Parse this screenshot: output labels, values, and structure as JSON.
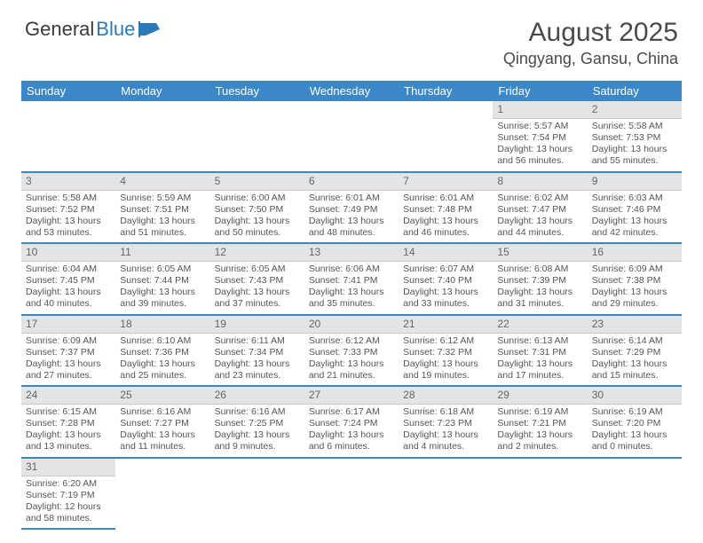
{
  "logo": {
    "text1": "General",
    "text2": "Blue"
  },
  "title": {
    "month": "August 2025",
    "location": "Qingyang, Gansu, China"
  },
  "colors": {
    "header_bg": "#3b87c8",
    "header_fg": "#ffffff",
    "daynum_bg": "#e4e4e4",
    "week_border": "#3b87c8",
    "text": "#555555"
  },
  "day_names": [
    "Sunday",
    "Monday",
    "Tuesday",
    "Wednesday",
    "Thursday",
    "Friday",
    "Saturday"
  ],
  "weeks": [
    [
      null,
      null,
      null,
      null,
      null,
      {
        "n": "1",
        "sr": "Sunrise: 5:57 AM",
        "ss": "Sunset: 7:54 PM",
        "d1": "Daylight: 13 hours",
        "d2": "and 56 minutes."
      },
      {
        "n": "2",
        "sr": "Sunrise: 5:58 AM",
        "ss": "Sunset: 7:53 PM",
        "d1": "Daylight: 13 hours",
        "d2": "and 55 minutes."
      }
    ],
    [
      {
        "n": "3",
        "sr": "Sunrise: 5:58 AM",
        "ss": "Sunset: 7:52 PM",
        "d1": "Daylight: 13 hours",
        "d2": "and 53 minutes."
      },
      {
        "n": "4",
        "sr": "Sunrise: 5:59 AM",
        "ss": "Sunset: 7:51 PM",
        "d1": "Daylight: 13 hours",
        "d2": "and 51 minutes."
      },
      {
        "n": "5",
        "sr": "Sunrise: 6:00 AM",
        "ss": "Sunset: 7:50 PM",
        "d1": "Daylight: 13 hours",
        "d2": "and 50 minutes."
      },
      {
        "n": "6",
        "sr": "Sunrise: 6:01 AM",
        "ss": "Sunset: 7:49 PM",
        "d1": "Daylight: 13 hours",
        "d2": "and 48 minutes."
      },
      {
        "n": "7",
        "sr": "Sunrise: 6:01 AM",
        "ss": "Sunset: 7:48 PM",
        "d1": "Daylight: 13 hours",
        "d2": "and 46 minutes."
      },
      {
        "n": "8",
        "sr": "Sunrise: 6:02 AM",
        "ss": "Sunset: 7:47 PM",
        "d1": "Daylight: 13 hours",
        "d2": "and 44 minutes."
      },
      {
        "n": "9",
        "sr": "Sunrise: 6:03 AM",
        "ss": "Sunset: 7:46 PM",
        "d1": "Daylight: 13 hours",
        "d2": "and 42 minutes."
      }
    ],
    [
      {
        "n": "10",
        "sr": "Sunrise: 6:04 AM",
        "ss": "Sunset: 7:45 PM",
        "d1": "Daylight: 13 hours",
        "d2": "and 40 minutes."
      },
      {
        "n": "11",
        "sr": "Sunrise: 6:05 AM",
        "ss": "Sunset: 7:44 PM",
        "d1": "Daylight: 13 hours",
        "d2": "and 39 minutes."
      },
      {
        "n": "12",
        "sr": "Sunrise: 6:05 AM",
        "ss": "Sunset: 7:43 PM",
        "d1": "Daylight: 13 hours",
        "d2": "and 37 minutes."
      },
      {
        "n": "13",
        "sr": "Sunrise: 6:06 AM",
        "ss": "Sunset: 7:41 PM",
        "d1": "Daylight: 13 hours",
        "d2": "and 35 minutes."
      },
      {
        "n": "14",
        "sr": "Sunrise: 6:07 AM",
        "ss": "Sunset: 7:40 PM",
        "d1": "Daylight: 13 hours",
        "d2": "and 33 minutes."
      },
      {
        "n": "15",
        "sr": "Sunrise: 6:08 AM",
        "ss": "Sunset: 7:39 PM",
        "d1": "Daylight: 13 hours",
        "d2": "and 31 minutes."
      },
      {
        "n": "16",
        "sr": "Sunrise: 6:09 AM",
        "ss": "Sunset: 7:38 PM",
        "d1": "Daylight: 13 hours",
        "d2": "and 29 minutes."
      }
    ],
    [
      {
        "n": "17",
        "sr": "Sunrise: 6:09 AM",
        "ss": "Sunset: 7:37 PM",
        "d1": "Daylight: 13 hours",
        "d2": "and 27 minutes."
      },
      {
        "n": "18",
        "sr": "Sunrise: 6:10 AM",
        "ss": "Sunset: 7:36 PM",
        "d1": "Daylight: 13 hours",
        "d2": "and 25 minutes."
      },
      {
        "n": "19",
        "sr": "Sunrise: 6:11 AM",
        "ss": "Sunset: 7:34 PM",
        "d1": "Daylight: 13 hours",
        "d2": "and 23 minutes."
      },
      {
        "n": "20",
        "sr": "Sunrise: 6:12 AM",
        "ss": "Sunset: 7:33 PM",
        "d1": "Daylight: 13 hours",
        "d2": "and 21 minutes."
      },
      {
        "n": "21",
        "sr": "Sunrise: 6:12 AM",
        "ss": "Sunset: 7:32 PM",
        "d1": "Daylight: 13 hours",
        "d2": "and 19 minutes."
      },
      {
        "n": "22",
        "sr": "Sunrise: 6:13 AM",
        "ss": "Sunset: 7:31 PM",
        "d1": "Daylight: 13 hours",
        "d2": "and 17 minutes."
      },
      {
        "n": "23",
        "sr": "Sunrise: 6:14 AM",
        "ss": "Sunset: 7:29 PM",
        "d1": "Daylight: 13 hours",
        "d2": "and 15 minutes."
      }
    ],
    [
      {
        "n": "24",
        "sr": "Sunrise: 6:15 AM",
        "ss": "Sunset: 7:28 PM",
        "d1": "Daylight: 13 hours",
        "d2": "and 13 minutes."
      },
      {
        "n": "25",
        "sr": "Sunrise: 6:16 AM",
        "ss": "Sunset: 7:27 PM",
        "d1": "Daylight: 13 hours",
        "d2": "and 11 minutes."
      },
      {
        "n": "26",
        "sr": "Sunrise: 6:16 AM",
        "ss": "Sunset: 7:25 PM",
        "d1": "Daylight: 13 hours",
        "d2": "and 9 minutes."
      },
      {
        "n": "27",
        "sr": "Sunrise: 6:17 AM",
        "ss": "Sunset: 7:24 PM",
        "d1": "Daylight: 13 hours",
        "d2": "and 6 minutes."
      },
      {
        "n": "28",
        "sr": "Sunrise: 6:18 AM",
        "ss": "Sunset: 7:23 PM",
        "d1": "Daylight: 13 hours",
        "d2": "and 4 minutes."
      },
      {
        "n": "29",
        "sr": "Sunrise: 6:19 AM",
        "ss": "Sunset: 7:21 PM",
        "d1": "Daylight: 13 hours",
        "d2": "and 2 minutes."
      },
      {
        "n": "30",
        "sr": "Sunrise: 6:19 AM",
        "ss": "Sunset: 7:20 PM",
        "d1": "Daylight: 13 hours",
        "d2": "and 0 minutes."
      }
    ],
    [
      {
        "n": "31",
        "sr": "Sunrise: 6:20 AM",
        "ss": "Sunset: 7:19 PM",
        "d1": "Daylight: 12 hours",
        "d2": "and 58 minutes."
      },
      null,
      null,
      null,
      null,
      null,
      null
    ]
  ]
}
